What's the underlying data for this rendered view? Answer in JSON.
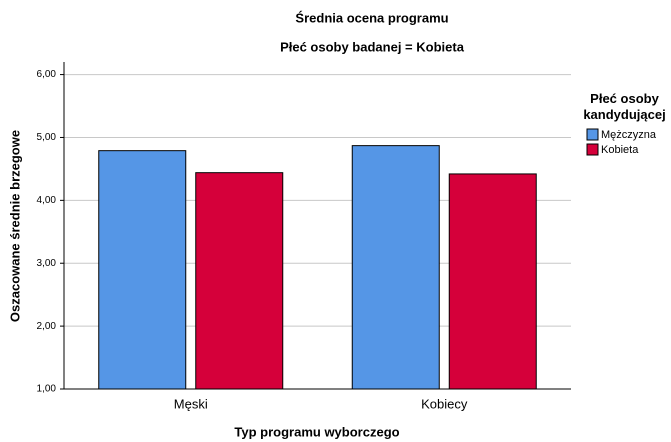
{
  "chart_data": {
    "type": "bar",
    "title": "Średnia ocena programu",
    "subtitle": "Płeć osoby badanej = Kobieta",
    "x_label": "Typ programu wyborczego",
    "y_label": "Oszacowane średnie brzegowe",
    "legend_title": "Płeć osoby kandydującej",
    "legend_position": "right",
    "categories": [
      "Męski",
      "Kobiecy"
    ],
    "series": [
      {
        "name": "Mężczyzna",
        "color": "#5596e6",
        "values": [
          4.79,
          4.87
        ]
      },
      {
        "name": "Kobieta",
        "color": "#d5003a",
        "values": [
          4.44,
          4.42
        ]
      }
    ],
    "ylim": [
      1,
      6.2
    ],
    "yticks": [
      {
        "value": 1,
        "label": "1,00"
      },
      {
        "value": 2,
        "label": "2,00"
      },
      {
        "value": 3,
        "label": "3,00"
      },
      {
        "value": 4,
        "label": "4,00"
      },
      {
        "value": 5,
        "label": "5,00"
      },
      {
        "value": 6,
        "label": "6,00"
      }
    ],
    "grid": true
  }
}
